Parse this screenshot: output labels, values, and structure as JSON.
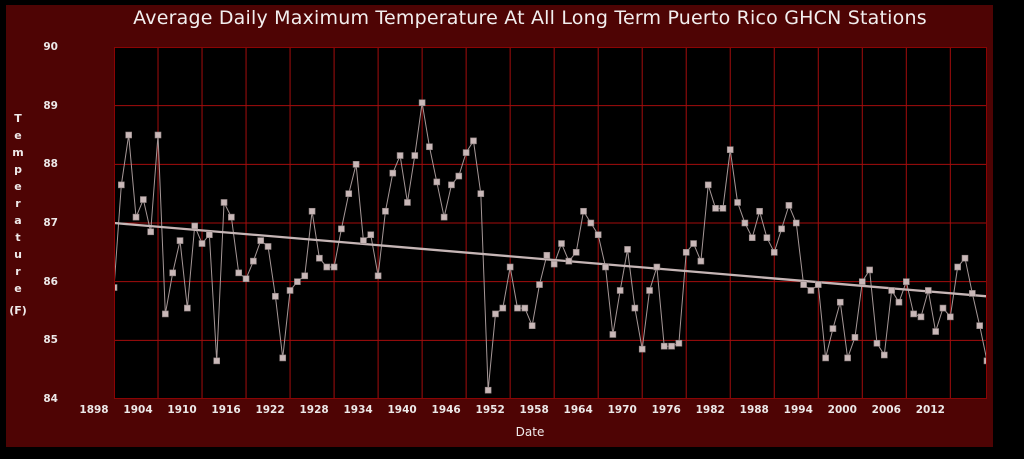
{
  "window": {
    "outer_background": "#000000",
    "panel_background": "#4e0404"
  },
  "chart_data": {
    "type": "line",
    "title": "Average Daily Maximum Temperature At All Long Term Puerto Rico GHCN Stations",
    "xlabel": "Date",
    "ylabel": "Temperature",
    "ylabel_unit": "(F)",
    "xlim": [
      1898,
      2017
    ],
    "ylim": [
      84,
      90
    ],
    "x_ticks": [
      1898,
      1904,
      1910,
      1916,
      1922,
      1928,
      1934,
      1940,
      1946,
      1952,
      1958,
      1964,
      1970,
      1976,
      1982,
      1988,
      1994,
      2000,
      2006,
      2012
    ],
    "y_ticks": [
      90,
      89,
      88,
      87,
      86,
      85,
      84
    ],
    "grid": true,
    "series": [
      {
        "name": "avg-daily-max-temperature",
        "x_start": 1898,
        "x_step": 1,
        "values": [
          85.9,
          87.65,
          88.5,
          87.1,
          87.4,
          86.85,
          88.5,
          85.45,
          86.15,
          86.7,
          85.55,
          86.95,
          86.65,
          86.8,
          84.65,
          87.35,
          87.1,
          86.15,
          86.05,
          86.35,
          86.7,
          86.6,
          85.75,
          84.7,
          85.85,
          86.0,
          86.1,
          87.2,
          86.4,
          86.25,
          86.25,
          86.9,
          87.5,
          88.0,
          86.7,
          86.8,
          86.1,
          87.2,
          87.85,
          88.15,
          87.35,
          88.15,
          89.05,
          88.3,
          87.7,
          87.1,
          87.65,
          87.8,
          88.2,
          88.4,
          87.5,
          84.15,
          85.45,
          85.55,
          86.25,
          85.55,
          85.55,
          85.25,
          85.95,
          86.45,
          86.3,
          86.65,
          86.35,
          86.5,
          87.2,
          87.0,
          86.8,
          86.25,
          85.1,
          85.85,
          86.55,
          85.55,
          84.85,
          85.85,
          86.25,
          84.9,
          84.9,
          84.95,
          86.5,
          86.65,
          86.35,
          87.65,
          87.25,
          87.25,
          88.25,
          87.35,
          87.0,
          86.75,
          87.2,
          86.75,
          86.5,
          86.9,
          87.3,
          87.0,
          85.95,
          85.85,
          85.95,
          84.7,
          85.2,
          85.65,
          84.7,
          85.05,
          86.0,
          86.2,
          84.95,
          84.75,
          85.85,
          85.65,
          86.0,
          85.45,
          85.4,
          85.85,
          85.15,
          85.55,
          85.4,
          86.25,
          86.4,
          85.8,
          85.25,
          84.65
        ]
      }
    ],
    "trend": {
      "x": [
        1898,
        2017
      ],
      "y": [
        87.0,
        85.75
      ]
    },
    "legend": null,
    "colors": {
      "grid": "#a40d0d",
      "plot_border": "#8b0404",
      "series_line": "#a59797",
      "marker_fill": "#c9b8b8",
      "marker_stroke": "#8f8282",
      "trend_line": "#c6b6b6",
      "text": "#f2eeee"
    }
  }
}
